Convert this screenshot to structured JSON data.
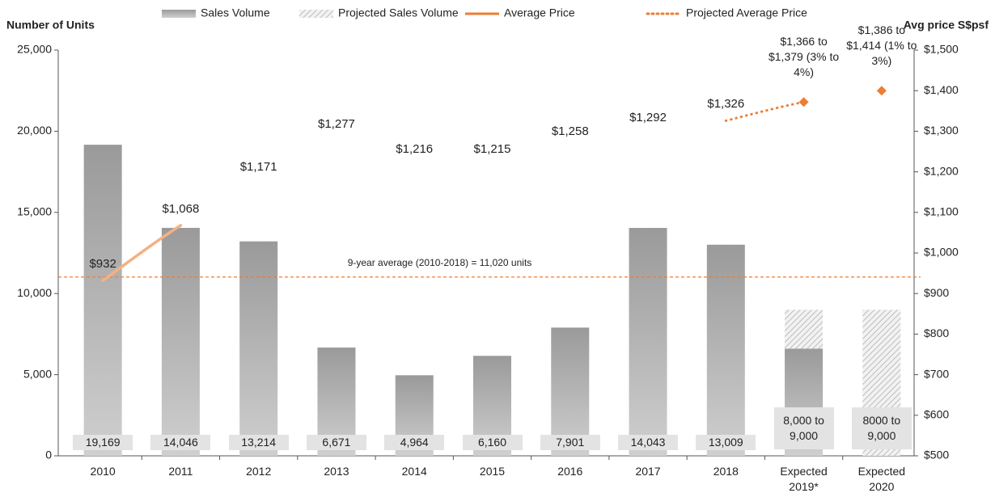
{
  "chart_data": {
    "type": "bar_line",
    "y_axis_label": "Number of Units",
    "y2_axis_label": "Avg price S$psf",
    "categories": [
      "2010",
      "2011",
      "2012",
      "2013",
      "2014",
      "2015",
      "2016",
      "2017",
      "2018",
      "Expected 2019*",
      "Expected 2020"
    ],
    "ylim": [
      0,
      25000
    ],
    "yticks": [
      0,
      {
        "value": 5000,
        "label": "5,000"
      },
      {
        "value": 10000,
        "label": "10,000"
      },
      {
        "value": 15000,
        "label": "15,000"
      },
      {
        "value": 20000,
        "label": "20,000"
      },
      {
        "value": 25000,
        "label": "25,000"
      }
    ],
    "y2lim": [
      500,
      1500
    ],
    "y2ticks": [
      {
        "value": 500,
        "label": "$500"
      },
      {
        "value": 600,
        "label": "$600"
      },
      {
        "value": 700,
        "label": "$700"
      },
      {
        "value": 800,
        "label": "$800"
      },
      {
        "value": 900,
        "label": "$900"
      },
      {
        "value": 1000,
        "label": "$1,000"
      },
      {
        "value": 1100,
        "label": "$1,100"
      },
      {
        "value": 1200,
        "label": "$1,200"
      },
      {
        "value": 1300,
        "label": "$1,300"
      },
      {
        "value": 1400,
        "label": "$1,400"
      },
      {
        "value": 1500,
        "label": "$1,500"
      }
    ],
    "series": [
      {
        "name": "Sales Volume",
        "type": "bar",
        "color": "#a6a6a6",
        "values": [
          19169,
          14046,
          13214,
          6671,
          4964,
          6160,
          7901,
          14043,
          13009,
          6600,
          null
        ],
        "value_labels": [
          "19,169",
          "14,046",
          "13,214",
          "6,671",
          "4,964",
          "6,160",
          "7,901",
          "14,043",
          "13,009",
          null,
          null
        ]
      },
      {
        "name": "Projected Sales Volume",
        "type": "bar",
        "pattern": "hatch",
        "color": "#bfbfbf",
        "values": [
          null,
          null,
          null,
          null,
          null,
          null,
          null,
          null,
          null,
          9000,
          9000
        ],
        "value_labels": [
          null,
          null,
          null,
          null,
          null,
          null,
          null,
          null,
          null,
          "8,000 to 9,000",
          "8000 to 9,000"
        ]
      },
      {
        "name": "Average Price",
        "type": "line",
        "axis": "y2",
        "color": "#ed7d31",
        "start_color": "#f4b183",
        "values": [
          932,
          1068,
          1171,
          1277,
          1216,
          1215,
          1258,
          1292,
          1326,
          null,
          null
        ],
        "value_labels": [
          "$932",
          "$1,068",
          "$1,171",
          "$1,277",
          "$1,216",
          "$1,215",
          "$1,258",
          "$1,292",
          "$1,326",
          null,
          null
        ]
      },
      {
        "name": "Projected Average Price",
        "type": "line",
        "axis": "y2",
        "dash": "dotted",
        "color": "#ed7d31",
        "values": [
          null,
          null,
          null,
          null,
          null,
          null,
          null,
          null,
          1326,
          1372,
          1400
        ],
        "value_labels": [
          null,
          null,
          null,
          null,
          null,
          null,
          null,
          null,
          null,
          "$1,366 to $1,379 (3% to 4%)",
          "$1,386 to $1,414 (1% to 3%)"
        ]
      }
    ],
    "reference_line": {
      "value": 11020,
      "label": "9-year average (2010-2018) = 11,020 units",
      "color": "#ed7d31"
    }
  }
}
